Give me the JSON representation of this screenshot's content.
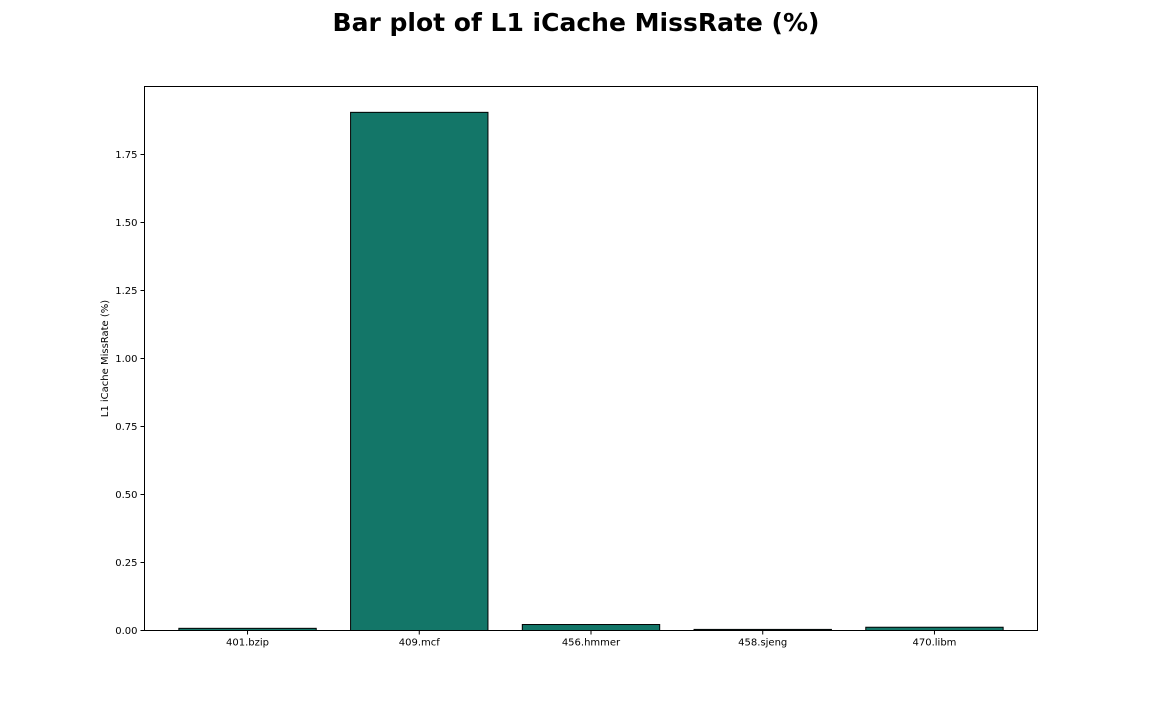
{
  "chart_data": {
    "type": "bar",
    "title": "Bar plot of L1 iCache MissRate (%)",
    "xlabel": "",
    "ylabel": "L1 iCache MissRate (%)",
    "categories": [
      "401.bzip",
      "409.mcf",
      "456.hmmer",
      "458.sjeng",
      "470.libm"
    ],
    "values": [
      0.008,
      1.905,
      0.022,
      0.004,
      0.012
    ],
    "ylim": [
      0,
      2.0
    ],
    "yticks": [
      "0.00",
      "0.25",
      "0.50",
      "0.75",
      "1.00",
      "1.25",
      "1.50",
      "1.75"
    ],
    "bar_color": "#137668",
    "edge_color": "#000000",
    "grid": false
  }
}
